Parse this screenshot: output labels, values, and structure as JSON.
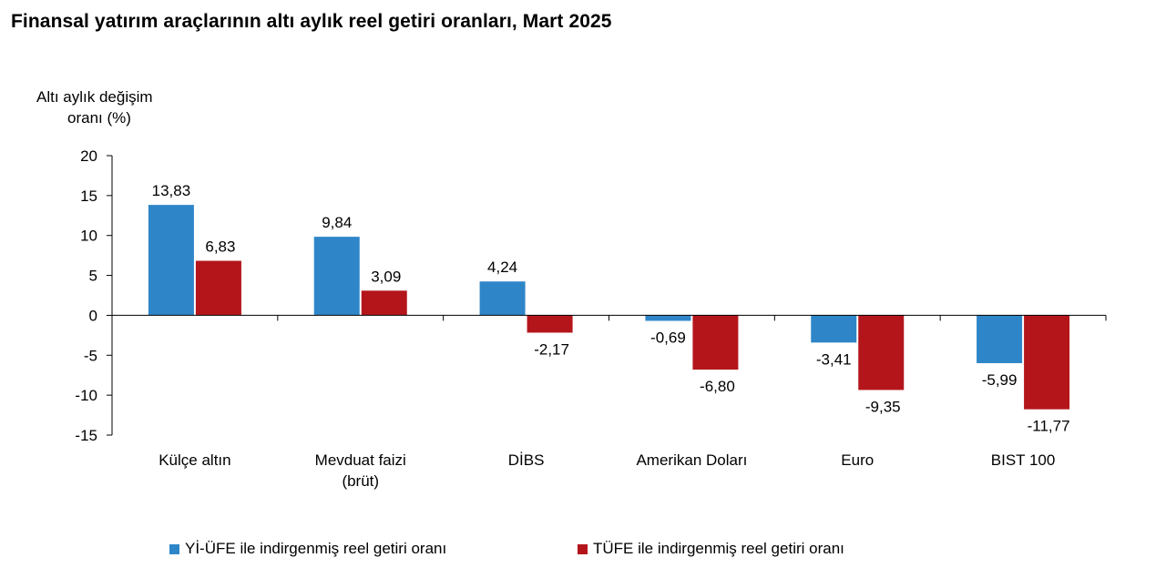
{
  "title": "Finansal yatırım araçlarının altı aylık reel getiri oranları, Mart 2025",
  "chart_data": {
    "type": "bar",
    "title": "Finansal yatırım araçlarının altı aylık reel getiri oranları, Mart 2025",
    "ylabel_lines": [
      "Altı aylık değişim",
      "oranı (%)"
    ],
    "xlabel": "",
    "categories": [
      [
        "Külçe altın"
      ],
      [
        "Mevduat faizi",
        "(brüt)"
      ],
      [
        "DİBS"
      ],
      [
        "Amerikan Doları"
      ],
      [
        "Euro"
      ],
      [
        "BIST 100"
      ]
    ],
    "ylim": [
      -15,
      20
    ],
    "yticks": [
      20,
      15,
      10,
      5,
      0,
      -5,
      -10,
      -15
    ],
    "series": [
      {
        "name": "Yİ-ÜFE ile indirgenmiş reel getiri oranı",
        "color": "#2E86C8",
        "values": [
          13.83,
          9.84,
          4.24,
          -0.69,
          -3.41,
          -5.99
        ],
        "labels": [
          "13,83",
          "9,84",
          "4,24",
          "-0,69",
          "-3,41",
          "-5,99"
        ]
      },
      {
        "name": "TÜFE ile indirgenmiş reel getiri oranı",
        "color": "#B4151B",
        "values": [
          6.83,
          3.09,
          -2.17,
          -6.8,
          -9.35,
          -11.77
        ],
        "labels": [
          "6,83",
          "3,09",
          "-2,17",
          "-6,80",
          "-9,35",
          "-11,77"
        ]
      }
    ],
    "grid": false,
    "legend_position": "bottom"
  }
}
